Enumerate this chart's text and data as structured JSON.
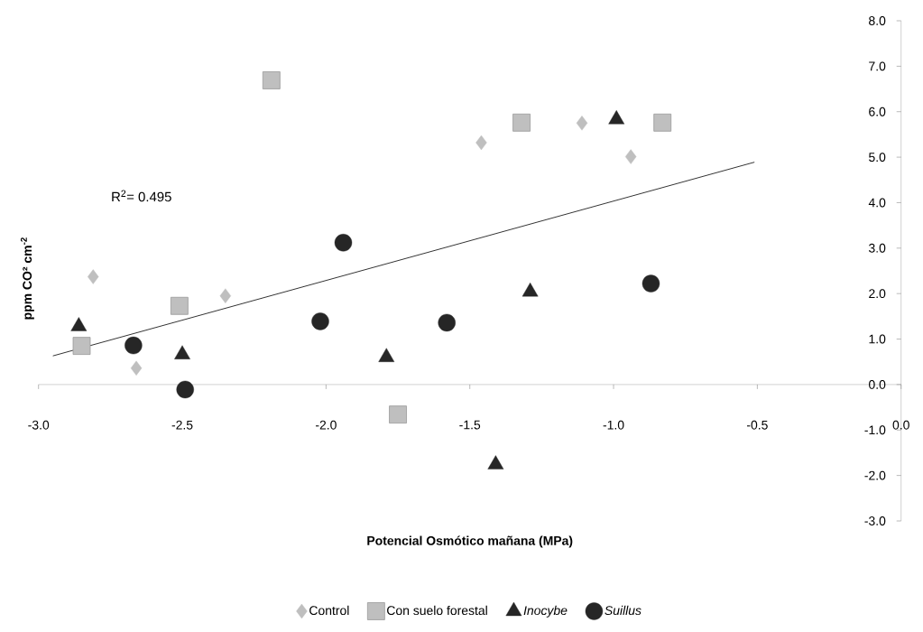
{
  "chart_data": {
    "type": "scatter",
    "xlabel": "Potencial Osmótico mañana (MPa)",
    "ylabel": "ppm CO² cm$^{-2}$",
    "annotations": [
      "R$^{2}$= 0.495"
    ],
    "xlim": [
      -3,
      0
    ],
    "ylim": [
      -3,
      8
    ],
    "xticks": [
      {
        "value": -3,
        "label": "-3.0"
      },
      {
        "value": -2.5,
        "label": "-2.5"
      },
      {
        "value": -2,
        "label": "-2.0"
      },
      {
        "value": -1.5,
        "label": "-1.5"
      },
      {
        "value": -1,
        "label": "-1.0"
      },
      {
        "value": -0.5,
        "label": "-0.5"
      },
      {
        "value": 0,
        "label": "0.0"
      }
    ],
    "yticks": [
      {
        "value": -3,
        "label": "-3.0"
      },
      {
        "value": -2,
        "label": "-2.0"
      },
      {
        "value": -1,
        "label": "-1.0"
      },
      {
        "value": 0,
        "label": "0.0"
      },
      {
        "value": 1,
        "label": "1.0"
      },
      {
        "value": 2,
        "label": "2.0"
      },
      {
        "value": 3,
        "label": "3.0"
      },
      {
        "value": 4,
        "label": "4.0"
      },
      {
        "value": 5,
        "label": "5.0"
      },
      {
        "value": 6,
        "label": "6.0"
      },
      {
        "value": 7,
        "label": "7.0"
      },
      {
        "value": 8,
        "label": "8.0"
      }
    ],
    "legend": "bottom",
    "series": [
      {
        "name": "Control",
        "color": "#bfbfbf",
        "marker": "diamond",
        "x": [
          -2.81,
          -2.66,
          -2.35,
          -1.46,
          -1.11,
          -0.94
        ],
        "values": [
          2.37,
          0.36,
          1.95,
          5.32,
          5.75,
          5.01
        ]
      },
      {
        "name": "Con suelo forestal",
        "color": "#bfbfbf",
        "marker": "square",
        "x": [
          -2.85,
          -2.51,
          -2.19,
          -1.75,
          -1.32,
          -0.83
        ],
        "values": [
          0.85,
          1.73,
          6.69,
          -0.66,
          5.76,
          5.76
        ]
      },
      {
        "name": "*Inocybe*",
        "color": "#262626",
        "marker": "triangle",
        "x": [
          -2.86,
          -2.5,
          -1.79,
          -1.41,
          -1.29,
          -0.99
        ],
        "values": [
          1.28,
          0.66,
          0.6,
          -1.76,
          2.04,
          5.83
        ]
      },
      {
        "name": "*Suillus*",
        "color": "#262626",
        "marker": "circle",
        "x": [
          -2.67,
          -2.49,
          -2.02,
          -1.94,
          -1.58,
          -0.87
        ],
        "values": [
          0.86,
          -0.11,
          1.39,
          3.12,
          1.36,
          2.22
        ]
      },
      {
        "type": "line",
        "color": "#000000",
        "marker": "none",
        "line_style": "solid",
        "x": [
          -2.95,
          -0.51
        ],
        "values": [
          0.63,
          4.89
        ]
      }
    ]
  }
}
